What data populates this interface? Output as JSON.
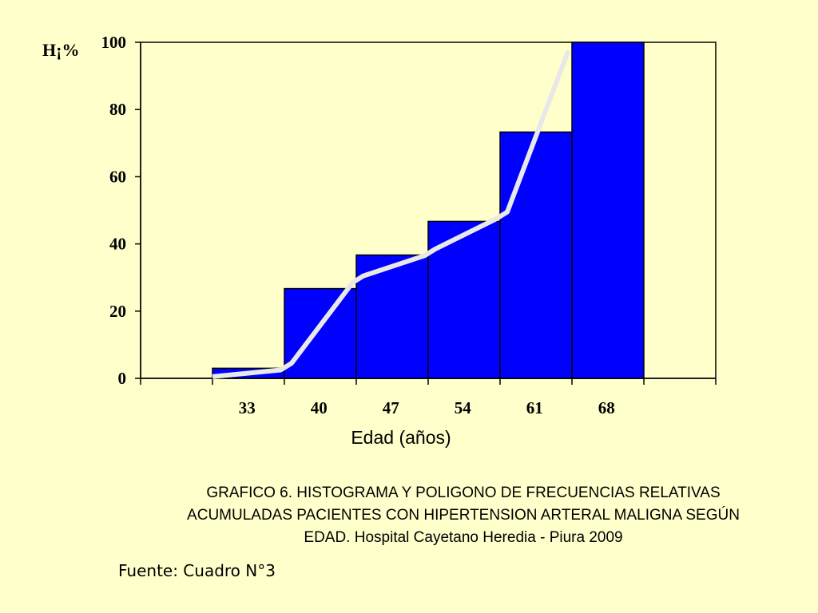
{
  "chart_data": {
    "type": "bar",
    "subtype": "histogram with cumulative frequency polygon",
    "categories": [
      "33",
      "40",
      "47",
      "54",
      "61",
      "68"
    ],
    "x_bins": 8,
    "bar_bins": [
      1,
      2,
      3,
      4,
      5,
      6
    ],
    "values": [
      3,
      26.7,
      36.7,
      46.7,
      73.3,
      100
    ],
    "polygon": {
      "x": [
        1.0,
        1.95,
        2.1,
        2.95,
        3.1,
        3.95,
        4.1,
        4.95,
        5.1,
        5.95
      ],
      "y": [
        0.5,
        2.5,
        4.5,
        28.5,
        30.5,
        36.5,
        38.5,
        47.5,
        49.5,
        97.5
      ]
    },
    "ylabel": "H¡%",
    "xlabel": "Edad (años)",
    "ylim": [
      0,
      100
    ],
    "yticks": [
      0,
      20,
      40,
      60,
      80,
      100
    ],
    "grid": false,
    "legend": "none",
    "bar_color": "#0000ff",
    "line_color": "#e8e8e8"
  },
  "caption": {
    "line1": "GRAFICO 6. HISTOGRAMA Y POLIGONO DE FRECUENCIAS RELATIVAS",
    "line2": "ACUMULADAS PACIENTES CON HIPERTENSION ARTERAL MALIGNA SEGÚN",
    "line3": "EDAD. Hospital Cayetano Heredia - Piura 2009"
  },
  "source": "Fuente: Cuadro N°3"
}
